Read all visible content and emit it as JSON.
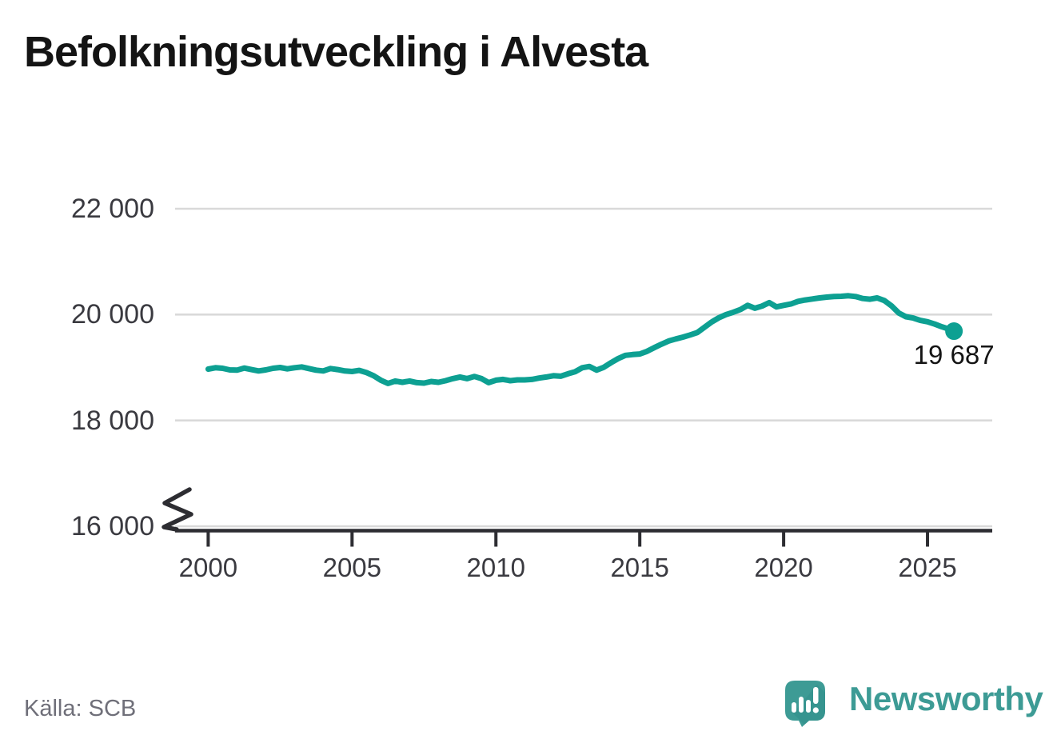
{
  "title": "Befolkningsutveckling i Alvesta",
  "source": "Källa: SCB",
  "branding": {
    "name": "Newsworthy",
    "icon": "newsworthy-speech-bubble-bar-chart-icon"
  },
  "colors": {
    "line": "#0da092",
    "grid": "#d9d9d9",
    "axis": "#2d2d32",
    "tick_text": "#3a3a40",
    "title_text": "#141414",
    "source_text": "#6f6f79",
    "brand_teal": "#3d9b95",
    "brand_teal_dark": "#2f8c87"
  },
  "chart_data": {
    "type": "line",
    "title": "Befolkningsutveckling i Alvesta",
    "xlabel": "",
    "ylabel": "",
    "xlim": [
      1998.85,
      2027.25
    ],
    "ylim": [
      16000,
      22000
    ],
    "y_axis_break": true,
    "grid": "horizontal",
    "x_ticks": [
      2000,
      2005,
      2010,
      2015,
      2020,
      2025
    ],
    "x_tick_labels": [
      "2000",
      "2005",
      "2010",
      "2015",
      "2020",
      "2025"
    ],
    "y_ticks": [
      16000,
      18000,
      20000,
      22000
    ],
    "y_tick_labels": [
      "16 000",
      "18 000",
      "20 000",
      "22 000"
    ],
    "last_value": 19687,
    "last_point_label": "19 687",
    "series": [
      {
        "name": "Befolkning",
        "points": [
          [
            2000.0,
            18970
          ],
          [
            2000.25,
            18995
          ],
          [
            2000.5,
            18985
          ],
          [
            2000.75,
            18955
          ],
          [
            2001.0,
            18950
          ],
          [
            2001.25,
            18990
          ],
          [
            2001.5,
            18960
          ],
          [
            2001.75,
            18935
          ],
          [
            2002.0,
            18955
          ],
          [
            2002.25,
            18985
          ],
          [
            2002.5,
            19000
          ],
          [
            2002.75,
            18975
          ],
          [
            2003.0,
            18995
          ],
          [
            2003.25,
            19010
          ],
          [
            2003.5,
            18980
          ],
          [
            2003.75,
            18950
          ],
          [
            2004.0,
            18935
          ],
          [
            2004.25,
            18980
          ],
          [
            2004.5,
            18960
          ],
          [
            2004.75,
            18935
          ],
          [
            2005.0,
            18925
          ],
          [
            2005.25,
            18945
          ],
          [
            2005.5,
            18905
          ],
          [
            2005.75,
            18845
          ],
          [
            2006.0,
            18760
          ],
          [
            2006.25,
            18700
          ],
          [
            2006.5,
            18745
          ],
          [
            2006.75,
            18720
          ],
          [
            2007.0,
            18745
          ],
          [
            2007.25,
            18715
          ],
          [
            2007.5,
            18705
          ],
          [
            2007.75,
            18735
          ],
          [
            2008.0,
            18720
          ],
          [
            2008.25,
            18750
          ],
          [
            2008.5,
            18790
          ],
          [
            2008.75,
            18820
          ],
          [
            2009.0,
            18790
          ],
          [
            2009.25,
            18830
          ],
          [
            2009.5,
            18790
          ],
          [
            2009.75,
            18715
          ],
          [
            2010.0,
            18760
          ],
          [
            2010.25,
            18775
          ],
          [
            2010.5,
            18750
          ],
          [
            2010.75,
            18765
          ],
          [
            2011.0,
            18765
          ],
          [
            2011.25,
            18775
          ],
          [
            2011.5,
            18800
          ],
          [
            2011.75,
            18820
          ],
          [
            2012.0,
            18845
          ],
          [
            2012.25,
            18835
          ],
          [
            2012.5,
            18880
          ],
          [
            2012.75,
            18920
          ],
          [
            2013.0,
            18995
          ],
          [
            2013.25,
            19020
          ],
          [
            2013.5,
            18950
          ],
          [
            2013.75,
            19005
          ],
          [
            2014.0,
            19090
          ],
          [
            2014.25,
            19170
          ],
          [
            2014.5,
            19230
          ],
          [
            2014.75,
            19245
          ],
          [
            2015.0,
            19255
          ],
          [
            2015.25,
            19305
          ],
          [
            2015.5,
            19375
          ],
          [
            2015.75,
            19440
          ],
          [
            2016.0,
            19500
          ],
          [
            2016.25,
            19540
          ],
          [
            2016.5,
            19575
          ],
          [
            2016.75,
            19615
          ],
          [
            2017.0,
            19660
          ],
          [
            2017.25,
            19760
          ],
          [
            2017.5,
            19860
          ],
          [
            2017.75,
            19940
          ],
          [
            2018.0,
            20000
          ],
          [
            2018.25,
            20045
          ],
          [
            2018.5,
            20095
          ],
          [
            2018.75,
            20175
          ],
          [
            2019.0,
            20120
          ],
          [
            2019.25,
            20160
          ],
          [
            2019.5,
            20225
          ],
          [
            2019.75,
            20145
          ],
          [
            2020.0,
            20175
          ],
          [
            2020.25,
            20200
          ],
          [
            2020.5,
            20250
          ],
          [
            2020.75,
            20275
          ],
          [
            2021.0,
            20295
          ],
          [
            2021.25,
            20315
          ],
          [
            2021.5,
            20330
          ],
          [
            2021.75,
            20340
          ],
          [
            2022.0,
            20345
          ],
          [
            2022.25,
            20355
          ],
          [
            2022.5,
            20340
          ],
          [
            2022.75,
            20305
          ],
          [
            2023.0,
            20290
          ],
          [
            2023.25,
            20315
          ],
          [
            2023.5,
            20265
          ],
          [
            2023.75,
            20165
          ],
          [
            2024.0,
            20030
          ],
          [
            2024.25,
            19960
          ],
          [
            2024.5,
            19935
          ],
          [
            2024.75,
            19890
          ],
          [
            2025.0,
            19865
          ],
          [
            2025.25,
            19820
          ],
          [
            2025.5,
            19770
          ],
          [
            2025.75,
            19725
          ],
          [
            2025.92,
            19687
          ]
        ]
      }
    ]
  }
}
